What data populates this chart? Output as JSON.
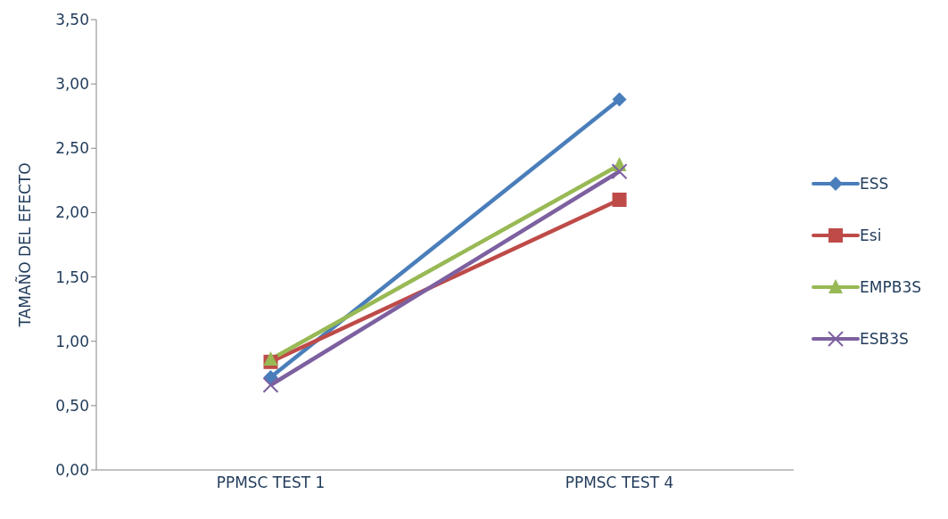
{
  "chart_data": {
    "type": "line",
    "ylabel": "TAMAÑO DEL EFECTO",
    "categories": [
      "PPMSC TEST 1",
      "PPMSC TEST 4"
    ],
    "ylim": [
      0,
      3.5
    ],
    "yticks": [
      {
        "value": 0,
        "label": "0,00"
      },
      {
        "value": 0.5,
        "label": "0,50"
      },
      {
        "value": 1,
        "label": "1,00"
      },
      {
        "value": 1.5,
        "label": "1,50"
      },
      {
        "value": 2,
        "label": "2,00"
      },
      {
        "value": 2.5,
        "label": "2,50"
      },
      {
        "value": 3,
        "label": "3,00"
      },
      {
        "value": 3.5,
        "label": "3,50"
      }
    ],
    "grid": false,
    "legend": "right",
    "line_style": "solid",
    "series": [
      {
        "name": "ESS",
        "color": "#4a7ebb",
        "marker": "diamond",
        "values": [
          0.72,
          2.88
        ]
      },
      {
        "name": "Esi",
        "color": "#be4b48",
        "marker": "square",
        "values": [
          0.84,
          2.1
        ]
      },
      {
        "name": "EMPB3S",
        "color": "#98b954",
        "marker": "triangle",
        "values": [
          0.86,
          2.37
        ]
      },
      {
        "name": "ESB3S",
        "color": "#7d60a0",
        "marker": "cross",
        "values": [
          0.66,
          2.32
        ]
      }
    ]
  }
}
